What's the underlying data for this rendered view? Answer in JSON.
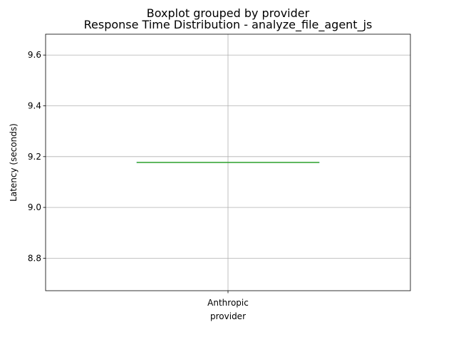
{
  "chart_data": {
    "type": "boxplot",
    "suptitle": "Boxplot grouped by provider",
    "title": "Response Time Distribution - analyze_file_agent_js",
    "xlabel": "provider",
    "ylabel": "Latency (seconds)",
    "categories": [
      "Anthropic"
    ],
    "boxes": [
      {
        "category": "Anthropic",
        "min": 9.177,
        "q1": 9.177,
        "median": 9.177,
        "q3": 9.177,
        "max": 9.177
      }
    ],
    "ylim": [
      8.672,
      9.682
    ],
    "yticks": [
      8.8,
      9.0,
      9.2,
      9.4,
      9.6
    ],
    "ytick_labels": [
      "8.8",
      "9.0",
      "9.2",
      "9.4",
      "9.6"
    ],
    "grid": true,
    "colors": {
      "box": "#1f77b4",
      "median": "#2ca02c",
      "whisker": "#000000",
      "grid": "#b0b0b0"
    }
  }
}
